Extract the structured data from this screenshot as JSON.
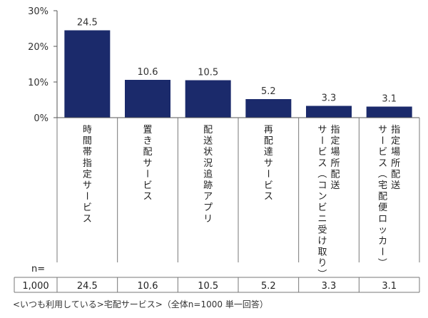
{
  "chart_data": {
    "type": "bar",
    "categories": [
      "時間帯指定サービス",
      "置き配サービス",
      "配送状況追跡アプリ",
      "再配達サービス",
      "指定場所配送サービス（コンビニ受け取り）",
      "指定場所配送サービス（宅配便ロッカー）"
    ],
    "values": [
      24.5,
      10.6,
      10.5,
      5.2,
      3.3,
      3.1
    ],
    "value_labels": [
      "24.5",
      "10.6",
      "10.5",
      "5.2",
      "3.3",
      "3.1"
    ],
    "ylim": [
      0,
      30
    ],
    "yticks": [
      0,
      10,
      20,
      30
    ],
    "ytick_labels": [
      "0%",
      "10%",
      "20%",
      "30%"
    ],
    "bar_color": "#1b2a6b",
    "table": {
      "n_header": "n=",
      "n_value": "1,000",
      "values": [
        "24.5",
        "10.6",
        "10.5",
        "5.2",
        "3.3",
        "3.1"
      ]
    }
  },
  "caption": "<いつも利用している>宅配サービス>（全体n=1000 単一回答）"
}
